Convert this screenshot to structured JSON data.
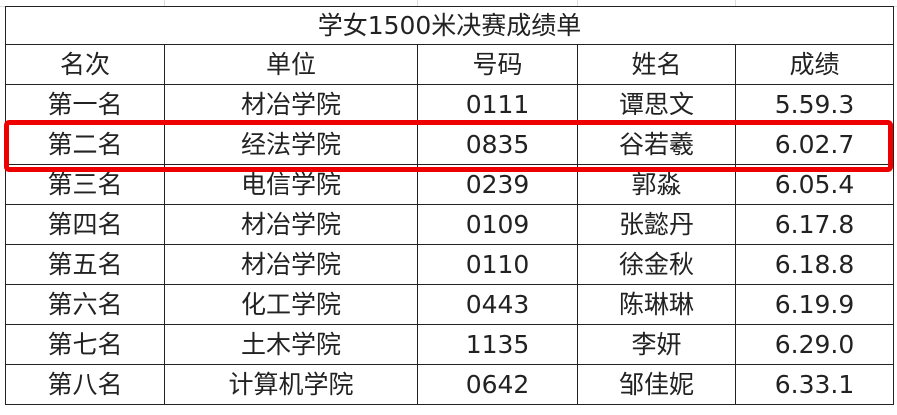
{
  "title": "学女1500米决赛成绩单",
  "headers": [
    "名次",
    "单位",
    "号码",
    "姓名",
    "成绩"
  ],
  "rows": [
    [
      "第一名",
      "材冶学院",
      "0111",
      "谭思文",
      "5.59.3"
    ],
    [
      "第二名",
      "经法学院",
      "0835",
      "谷若羲",
      "6.02.7"
    ],
    [
      "第三名",
      "电信学院",
      "0239",
      "郭淼",
      "6.05.4"
    ],
    [
      "第四名",
      "材冶学院",
      "0109",
      "张懿丹",
      "6.17.8"
    ],
    [
      "第五名",
      "材冶学院",
      "0110",
      "徐金秋",
      "6.18.8"
    ],
    [
      "第六名",
      "化工学院",
      "0443",
      "陈琳琳",
      "6.19.9"
    ],
    [
      "第七名",
      "土木学院",
      "1135",
      "李妍",
      "6.29.0"
    ],
    [
      "第八名",
      "计算机学院",
      "0642",
      "邹佳妮",
      "6.33.1"
    ]
  ],
  "highlight": {
    "row_index": 1,
    "color": "#ee0000"
  }
}
